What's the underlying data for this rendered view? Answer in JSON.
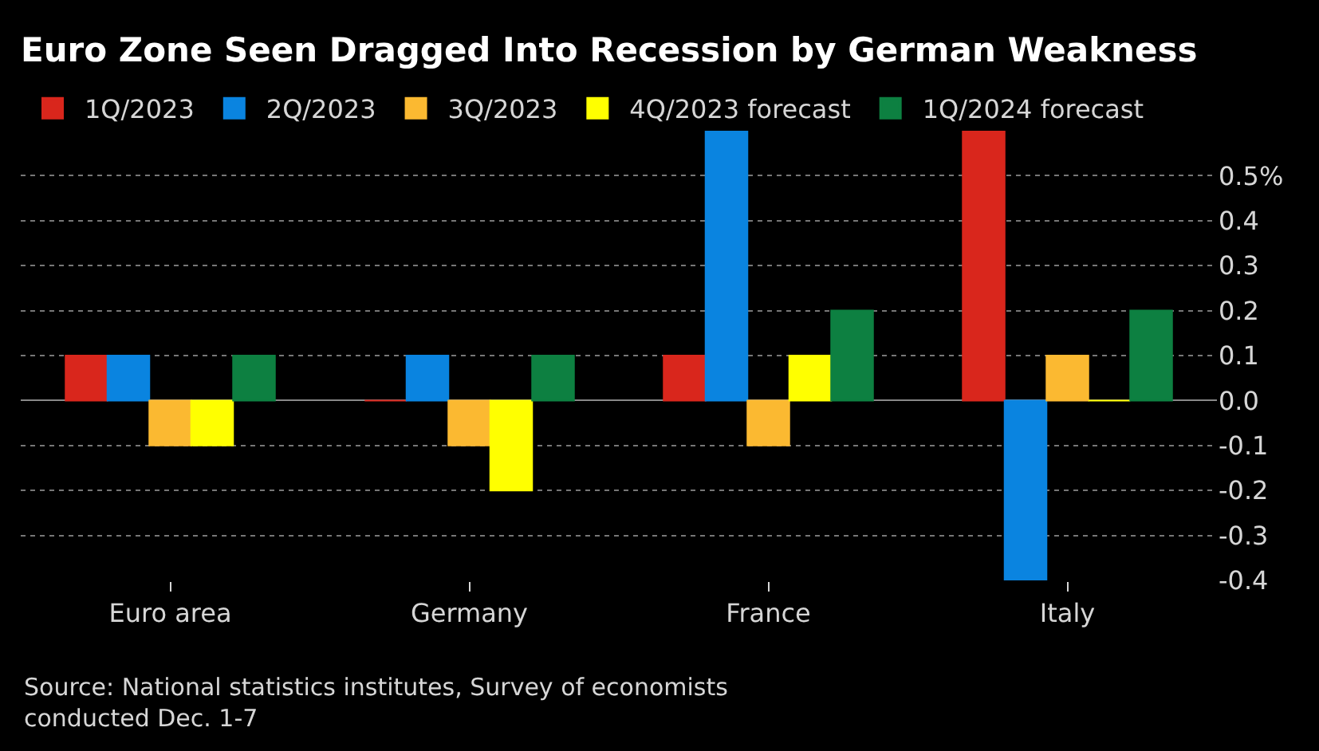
{
  "chart_data": {
    "type": "bar",
    "title": "Euro Zone Seen Dragged Into Recession by German Weakness",
    "categories": [
      "Euro area",
      "Germany",
      "France",
      "Italy"
    ],
    "series": [
      {
        "name": "1Q/2023",
        "color": "#d9261c",
        "values": [
          0.1,
          0.0,
          0.1,
          0.6
        ]
      },
      {
        "name": "2Q/2023",
        "color": "#0a84e0",
        "values": [
          0.1,
          0.1,
          0.6,
          -0.4
        ]
      },
      {
        "name": "3Q/2023",
        "color": "#fbb931",
        "values": [
          -0.1,
          -0.1,
          -0.1,
          0.1
        ]
      },
      {
        "name": "4Q/2023 forecast",
        "color": "#ffff00",
        "values": [
          -0.1,
          -0.2,
          0.1,
          0.0
        ]
      },
      {
        "name": "1Q/2024 forecast",
        "color": "#0d8041",
        "values": [
          0.1,
          0.1,
          0.2,
          0.2
        ]
      }
    ],
    "ylim": [
      -0.4,
      0.6
    ],
    "yticks": [
      -0.4,
      -0.3,
      -0.2,
      -0.1,
      {
        "value": 0,
        "label": "0.0"
      },
      0.1,
      0.2,
      0.3,
      0.4,
      {
        "value": 0.5,
        "label": "0.5%"
      }
    ],
    "grid": "y",
    "legend": "top left",
    "annotations": [
      "Source: National statistics institutes, Survey of economists conducted Dec. 1-7"
    ]
  }
}
